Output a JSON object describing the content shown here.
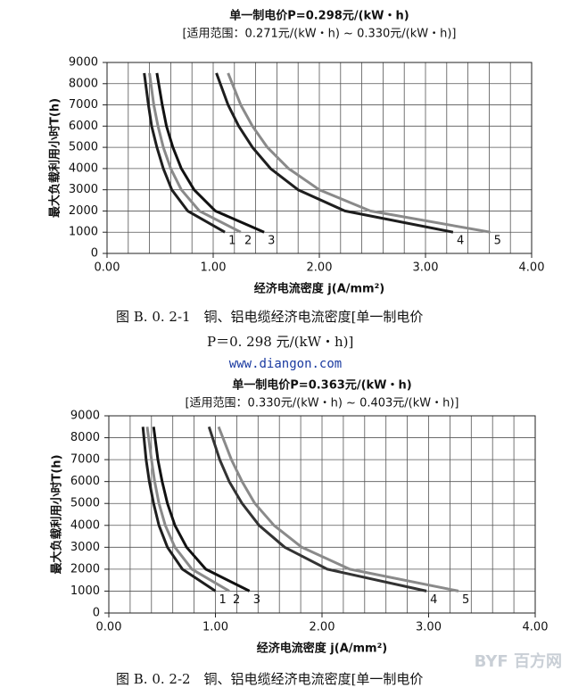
{
  "chart_data": [
    {
      "type": "line",
      "title": "单一制电价P=0.298元/(kW・h)",
      "subtitle": "[适用范围：0.271元/(kW・h) ~ 0.330元/(kW・h)]",
      "x_label": "经济电流密度 j(A/mm²)",
      "y_label": "最大负载利用小时T(h)",
      "xlim": [
        0,
        4
      ],
      "xticks": [
        {
          "value": 0,
          "label": "0.00"
        },
        {
          "value": 1,
          "label": "1.00"
        },
        {
          "value": 2,
          "label": "2.00"
        },
        {
          "value": 3,
          "label": "3.00"
        },
        {
          "value": 4,
          "label": "4.00"
        }
      ],
      "xgrid": [
        0.2,
        0.4,
        0.6,
        0.8,
        1.2,
        1.4,
        1.6,
        1.8,
        2.2,
        2.4,
        2.6,
        2.8,
        3.2,
        3.4,
        3.6,
        3.8
      ],
      "ylim": [
        0,
        9000
      ],
      "yticks": [
        0,
        1000,
        2000,
        3000,
        4000,
        5000,
        6000,
        7000,
        8000,
        9000
      ],
      "grid": true,
      "series": [
        {
          "name": "1",
          "color": "#1e1e1e",
          "x": [
            0.35,
            0.39,
            0.42,
            0.47,
            0.53,
            0.61,
            0.76,
            1.11
          ],
          "values": [
            8500,
            7000,
            6000,
            5000,
            4000,
            3000,
            2000,
            1000
          ]
        },
        {
          "name": "2",
          "color": "#8a8a8a",
          "x": [
            0.4,
            0.44,
            0.48,
            0.53,
            0.6,
            0.7,
            0.87,
            1.26
          ],
          "values": [
            8500,
            7000,
            6000,
            5000,
            4000,
            3000,
            2000,
            1000
          ]
        },
        {
          "name": "3",
          "color": "#111111",
          "x": [
            0.47,
            0.52,
            0.56,
            0.62,
            0.7,
            0.82,
            1.02,
            1.48
          ],
          "values": [
            8500,
            7000,
            6000,
            5000,
            4000,
            3000,
            2000,
            1000
          ]
        },
        {
          "name": "4",
          "color": "#1e1e1e",
          "x": [
            1.03,
            1.14,
            1.24,
            1.37,
            1.54,
            1.8,
            2.24,
            3.26
          ],
          "values": [
            8500,
            7000,
            6000,
            5000,
            4000,
            3000,
            2000,
            1000
          ]
        },
        {
          "name": "5",
          "color": "#8a8a8a",
          "x": [
            1.14,
            1.26,
            1.37,
            1.51,
            1.71,
            2.0,
            2.48,
            3.61
          ],
          "values": [
            8500,
            7000,
            6000,
            5000,
            4000,
            3000,
            2000,
            1000
          ]
        }
      ]
    },
    {
      "type": "line",
      "title": "单一制电价P=0.363元/(kW・h)",
      "subtitle": "[适用范围：0.330元/(kW・h) ~ 0.403元/(kW・h)]",
      "x_label": "经济电流密度 j(A/mm²)",
      "y_label": "最大负载利用小时T(h)",
      "xlim": [
        0,
        4
      ],
      "xticks": [
        {
          "value": 0,
          "label": "0.00"
        },
        {
          "value": 1,
          "label": "1.00"
        },
        {
          "value": 2,
          "label": "2.00"
        },
        {
          "value": 3,
          "label": "3.00"
        },
        {
          "value": 4,
          "label": "4.00"
        }
      ],
      "xgrid": [
        0.2,
        0.4,
        0.6,
        0.8,
        1.2,
        1.4,
        1.6,
        1.8,
        2.2,
        2.4,
        2.6,
        2.8,
        3.2,
        3.4,
        3.6,
        3.8
      ],
      "ylim": [
        0,
        9000
      ],
      "yticks": [
        0,
        1000,
        2000,
        3000,
        4000,
        5000,
        6000,
        7000,
        8000,
        9000
      ],
      "grid": true,
      "series": [
        {
          "name": "1",
          "color": "#1e1e1e",
          "x": [
            0.32,
            0.35,
            0.38,
            0.42,
            0.47,
            0.55,
            0.69,
            1.0
          ],
          "values": [
            8500,
            7000,
            6000,
            5000,
            4000,
            3000,
            2000,
            1000
          ]
        },
        {
          "name": "2",
          "color": "#8a8a8a",
          "x": [
            0.36,
            0.4,
            0.43,
            0.47,
            0.53,
            0.62,
            0.78,
            1.13
          ],
          "values": [
            8500,
            7000,
            6000,
            5000,
            4000,
            3000,
            2000,
            1000
          ]
        },
        {
          "name": "3",
          "color": "#111111",
          "x": [
            0.42,
            0.46,
            0.5,
            0.55,
            0.62,
            0.73,
            0.91,
            1.32
          ],
          "values": [
            8500,
            7000,
            6000,
            5000,
            4000,
            3000,
            2000,
            1000
          ]
        },
        {
          "name": "4",
          "color": "#333333",
          "x": [
            0.94,
            1.04,
            1.13,
            1.25,
            1.41,
            1.65,
            2.05,
            2.98
          ],
          "values": [
            8500,
            7000,
            6000,
            5000,
            4000,
            3000,
            2000,
            1000
          ]
        },
        {
          "name": "5",
          "color": "#8a8a8a",
          "x": [
            1.03,
            1.15,
            1.25,
            1.37,
            1.55,
            1.81,
            2.26,
            3.28
          ],
          "values": [
            8500,
            7000,
            6000,
            5000,
            4000,
            3000,
            2000,
            1000
          ]
        }
      ]
    }
  ],
  "captions": [
    "图 B. 0. 2-1　铜、铝电缆经济电流密度[单一制电价",
    "P＝0. 298 元/(kW・h)]",
    "图 B. 0. 2-2　铜、铝电缆经济电流密度[单一制电价"
  ],
  "website": "www.diangon.com",
  "watermark": "BYF 百方网"
}
